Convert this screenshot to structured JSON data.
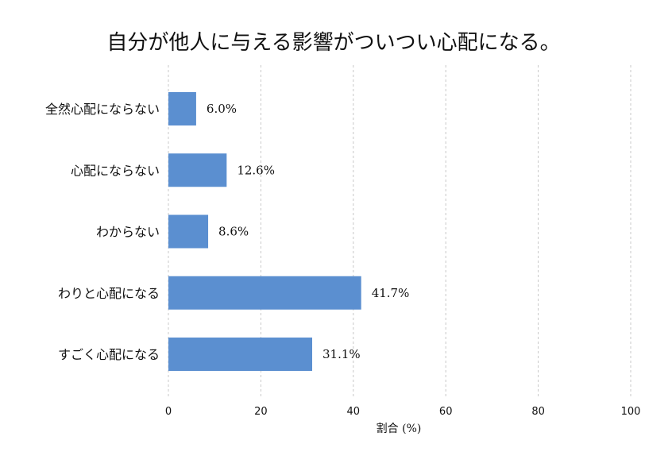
{
  "chart_data": {
    "type": "bar",
    "orientation": "horizontal",
    "title": "自分が他人に与える影響がついつい心配になる。",
    "categories": [
      "全然心配にならない",
      "心配にならない",
      "わからない",
      "わりと心配になる",
      "すごく心配になる"
    ],
    "values": [
      6.0,
      12.6,
      8.6,
      41.7,
      31.1
    ],
    "value_labels": [
      "6.0%",
      "12.6%",
      "8.6%",
      "41.7%",
      "31.1%"
    ],
    "xlabel": "割合 (%)",
    "ylabel": "",
    "xlim": [
      0,
      100
    ],
    "xticks": [
      0,
      20,
      40,
      60,
      80,
      100
    ],
    "xtick_labels": [
      "0",
      "20",
      "40",
      "60",
      "80",
      "100"
    ],
    "grid": "x-dashed",
    "bar_color": "#5b8fd0"
  }
}
